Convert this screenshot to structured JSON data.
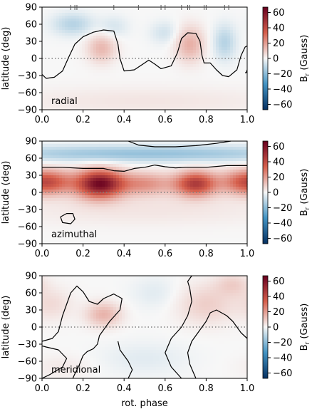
{
  "colorscale": {
    "negative": "#053061",
    "neg_mid": "#4393c3",
    "zero": "#f7f7f7",
    "pos_mid": "#d6604d",
    "positive": "#67001f"
  },
  "chart_data": [
    {
      "type": "heatmap",
      "panel_label": "radial",
      "xlabel": "",
      "ylabel": "latitude (deg)",
      "xlim": [
        0,
        1
      ],
      "ylim": [
        -90,
        90
      ],
      "xticks": [
        "0.0",
        "0.2",
        "0.4",
        "0.6",
        "0.8",
        "1.0"
      ],
      "yticks": [
        "−90",
        "−60",
        "−30",
        "0",
        "30",
        "60",
        "90"
      ],
      "equator_line": "dotted",
      "observation_phases": [
        0.14,
        0.16,
        0.17,
        0.35,
        0.47,
        0.58,
        0.6,
        0.68,
        0.71,
        0.72,
        0.79,
        0.8,
        0.89,
        0.91
      ],
      "colorbar": {
        "label": "B$_r$ (Gauss)",
        "label_text": "B",
        "label_sub": "r",
        "label_rest": " (Gauss)",
        "ticks": [
          "60",
          "40",
          "20",
          "0",
          "−20",
          "−40",
          "−60"
        ],
        "range": [
          -67,
          67
        ]
      },
      "spots": [
        {
          "x": 0.15,
          "y": 60,
          "sx": 0.07,
          "sy": 14,
          "B": -12
        },
        {
          "x": 0.35,
          "y": 55,
          "sx": 0.05,
          "sy": 14,
          "B": -6
        },
        {
          "x": 0.6,
          "y": 45,
          "sx": 0.05,
          "sy": 14,
          "B": -7
        },
        {
          "x": 0.89,
          "y": 28,
          "sx": 0.04,
          "sy": 22,
          "B": -12
        },
        {
          "x": 0.29,
          "y": 18,
          "sx": 0.05,
          "sy": 18,
          "B": 14
        },
        {
          "x": 0.72,
          "y": 25,
          "sx": 0.05,
          "sy": 22,
          "B": 16
        },
        {
          "x": 0.5,
          "y": -75,
          "sx": 0.5,
          "sy": 18,
          "B": 4
        }
      ]
    },
    {
      "type": "heatmap",
      "panel_label": "azimuthal",
      "xlabel": "",
      "ylabel": "latitude (deg)",
      "xlim": [
        0,
        1
      ],
      "ylim": [
        -90,
        90
      ],
      "xticks": [
        "0.0",
        "0.2",
        "0.4",
        "0.6",
        "0.8",
        "1.0"
      ],
      "yticks": [
        "−90",
        "−60",
        "−30",
        "0",
        "30",
        "60",
        "90"
      ],
      "equator_line": "dotted",
      "colorbar": {
        "label": "B$_r$ (Gauss)",
        "label_text": "B",
        "label_sub": "r",
        "label_rest": " (Gauss)",
        "ticks": [
          "60",
          "40",
          "20",
          "0",
          "−20",
          "−40",
          "−60"
        ],
        "range": [
          -67,
          67
        ]
      },
      "spots": [
        {
          "x": 0.5,
          "y": 68,
          "sx": 0.6,
          "sy": 10,
          "B": -18
        },
        {
          "x": 0.05,
          "y": 18,
          "sx": 0.08,
          "sy": 15,
          "B": 25
        },
        {
          "x": 0.28,
          "y": 15,
          "sx": 0.08,
          "sy": 17,
          "B": 62
        },
        {
          "x": 0.5,
          "y": 15,
          "sx": 0.1,
          "sy": 14,
          "B": 22
        },
        {
          "x": 0.75,
          "y": 15,
          "sx": 0.07,
          "sy": 15,
          "B": 45
        },
        {
          "x": 0.97,
          "y": 18,
          "sx": 0.08,
          "sy": 15,
          "B": 22
        },
        {
          "x": 0.5,
          "y": -30,
          "sx": 0.5,
          "sy": 20,
          "B": 4
        }
      ]
    },
    {
      "type": "heatmap",
      "panel_label": "meridional",
      "xlabel": "rot. phase",
      "ylabel": "latitude (deg)",
      "xlim": [
        0,
        1
      ],
      "ylim": [
        -90,
        90
      ],
      "xticks": [
        "0.0",
        "0.2",
        "0.4",
        "0.6",
        "0.8",
        "1.0"
      ],
      "yticks": [
        "−90",
        "−60",
        "−30",
        "0",
        "30",
        "60",
        "90"
      ],
      "equator_line": "dotted",
      "colorbar": {
        "label": "B$_r$ (Gauss)",
        "label_text": "B",
        "label_sub": "r",
        "label_rest": " (Gauss)",
        "ticks": [
          "60",
          "40",
          "20",
          "0",
          "−20",
          "−40",
          "−60"
        ],
        "range": [
          -67,
          67
        ]
      },
      "spots": [
        {
          "x": 0.05,
          "y": 40,
          "sx": 0.07,
          "sy": 20,
          "B": 6
        },
        {
          "x": 0.3,
          "y": 22,
          "sx": 0.06,
          "sy": 15,
          "B": 15
        },
        {
          "x": 0.8,
          "y": 40,
          "sx": 0.1,
          "sy": 25,
          "B": 9
        },
        {
          "x": 0.93,
          "y": 75,
          "sx": 0.06,
          "sy": 14,
          "B": 8
        },
        {
          "x": 0.55,
          "y": 60,
          "sx": 0.08,
          "sy": 20,
          "B": -4
        },
        {
          "x": 0.5,
          "y": -55,
          "sx": 0.15,
          "sy": 20,
          "B": -4
        },
        {
          "x": 0.1,
          "y": -70,
          "sx": 0.1,
          "sy": 15,
          "B": 3
        }
      ]
    }
  ],
  "contours": [
    [
      [
        [
          0,
          -28
        ],
        [
          0.02,
          -35
        ],
        [
          0.06,
          -33
        ],
        [
          0.1,
          -22
        ],
        [
          0.13,
          2
        ],
        [
          0.16,
          25
        ],
        [
          0.2,
          38
        ],
        [
          0.25,
          46
        ],
        [
          0.3,
          50
        ],
        [
          0.35,
          48
        ],
        [
          0.37,
          25
        ],
        [
          0.38,
          0
        ],
        [
          0.4,
          -22
        ],
        [
          0.45,
          -20
        ],
        [
          0.5,
          -8
        ],
        [
          0.52,
          -3
        ],
        [
          0.55,
          -10
        ],
        [
          0.58,
          -18
        ],
        [
          0.63,
          -13
        ],
        [
          0.66,
          10
        ],
        [
          0.68,
          35
        ],
        [
          0.71,
          45
        ],
        [
          0.75,
          44
        ],
        [
          0.77,
          30
        ],
        [
          0.78,
          5
        ],
        [
          0.79,
          -8
        ],
        [
          0.82,
          -8
        ],
        [
          0.85,
          -20
        ],
        [
          0.88,
          -30
        ],
        [
          0.91,
          -32
        ],
        [
          0.95,
          -20
        ],
        [
          0.97,
          5
        ],
        [
          0.99,
          20
        ],
        [
          1.0,
          22
        ]
      ],
      [
        [
          1.0,
          -20
        ],
        [
          0.995,
          -25
        ],
        [
          0.99,
          -25
        ]
      ]
    ],
    [
      [
        [
          0,
          44
        ],
        [
          0.1,
          44
        ],
        [
          0.2,
          42
        ],
        [
          0.3,
          42
        ],
        [
          0.35,
          38
        ],
        [
          0.4,
          37
        ],
        [
          0.45,
          42
        ],
        [
          0.5,
          44
        ],
        [
          0.55,
          48
        ],
        [
          0.6,
          45
        ],
        [
          0.65,
          43
        ],
        [
          0.7,
          44
        ],
        [
          0.8,
          44
        ],
        [
          0.9,
          47
        ],
        [
          1.0,
          47
        ]
      ],
      [
        [
          0.42,
          90
        ],
        [
          0.47,
          83
        ],
        [
          0.55,
          80
        ],
        [
          0.65,
          80
        ],
        [
          0.75,
          82
        ],
        [
          0.85,
          86
        ],
        [
          0.92,
          90
        ]
      ],
      [
        [
          0.09,
          -43
        ],
        [
          0.12,
          -37
        ],
        [
          0.15,
          -37
        ],
        [
          0.16,
          -47
        ],
        [
          0.14,
          -55
        ],
        [
          0.1,
          -53
        ],
        [
          0.09,
          -43
        ]
      ]
    ],
    [
      [
        [
          0,
          -25
        ],
        [
          0.05,
          -20
        ],
        [
          0.08,
          -8
        ],
        [
          0.1,
          20
        ],
        [
          0.14,
          60
        ],
        [
          0.17,
          72
        ],
        [
          0.2,
          62
        ],
        [
          0.23,
          45
        ],
        [
          0.27,
          40
        ],
        [
          0.3,
          50
        ],
        [
          0.35,
          58
        ],
        [
          0.39,
          50
        ],
        [
          0.38,
          30
        ],
        [
          0.33,
          10
        ],
        [
          0.28,
          -15
        ],
        [
          0.27,
          -30
        ],
        [
          0.25,
          -38
        ],
        [
          0.22,
          -43
        ],
        [
          0.2,
          -50
        ],
        [
          0.18,
          -68
        ],
        [
          0.16,
          -82
        ],
        [
          0.15,
          -90
        ]
      ],
      [
        [
          0,
          -90
        ],
        [
          0.04,
          -83
        ],
        [
          0.1,
          -70
        ],
        [
          0.12,
          -55
        ],
        [
          0.08,
          -40
        ],
        [
          0.02,
          -35
        ],
        [
          0,
          -33
        ]
      ],
      [
        [
          0.42,
          -90
        ],
        [
          0.44,
          -75
        ],
        [
          0.42,
          -60
        ],
        [
          0.38,
          -40
        ],
        [
          0.37,
          -25
        ]
      ],
      [
        [
          0.68,
          -90
        ],
        [
          0.63,
          -70
        ],
        [
          0.6,
          -45
        ],
        [
          0.63,
          -20
        ],
        [
          0.68,
          0
        ],
        [
          0.71,
          20
        ],
        [
          0.73,
          45
        ],
        [
          0.72,
          68
        ],
        [
          0.71,
          80
        ],
        [
          0.73,
          90
        ]
      ],
      [
        [
          0.75,
          -90
        ],
        [
          0.72,
          -65
        ],
        [
          0.71,
          -45
        ],
        [
          0.73,
          -25
        ],
        [
          0.78,
          0
        ],
        [
          0.8,
          10
        ],
        [
          0.82,
          25
        ],
        [
          0.85,
          30
        ],
        [
          0.9,
          20
        ],
        [
          0.93,
          10
        ],
        [
          0.97,
          -10
        ],
        [
          1.0,
          -20
        ]
      ]
    ]
  ]
}
